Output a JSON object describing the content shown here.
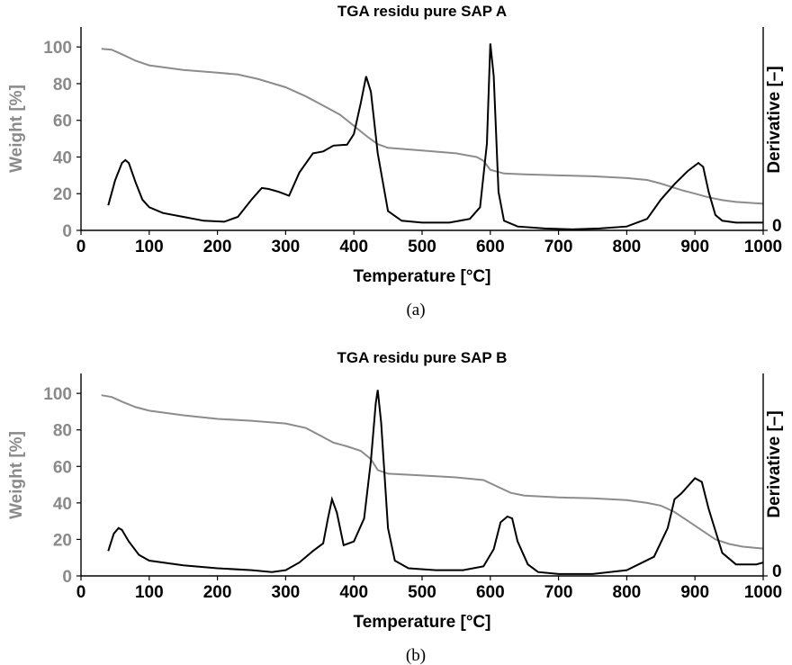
{
  "chart_data": [
    {
      "type": "line",
      "title": "TGA residu pure SAP A",
      "xlabel": "Temperature [°C]",
      "ylabel": "Weight [%]",
      "y2label": "Derivative [–]",
      "xlim": [
        0,
        1000
      ],
      "ylim": [
        0,
        105
      ],
      "y2lim": [
        0,
        100
      ],
      "x_ticks": [
        "0",
        "100",
        "200",
        "300",
        "400",
        "500",
        "600",
        "700",
        "800",
        "900",
        "1000"
      ],
      "y_ticks": [
        "0",
        "20",
        "40",
        "60",
        "80",
        "100"
      ],
      "y2_ticks": [
        "0"
      ],
      "caption": "(a)",
      "series": [
        {
          "color": "#8c8c8c",
          "axis": "left",
          "x": [
            30,
            45,
            60,
            80,
            100,
            150,
            200,
            230,
            260,
            300,
            330,
            360,
            380,
            400,
            420,
            435,
            450,
            500,
            550,
            580,
            590,
            600,
            620,
            650,
            700,
            750,
            800,
            830,
            850,
            880,
            900,
            920,
            940,
            960,
            980,
            1000
          ],
          "y": [
            99,
            98.5,
            96,
            92.5,
            90,
            87.5,
            86,
            85,
            82.5,
            78,
            73,
            67,
            63,
            57,
            51,
            47,
            45,
            43.5,
            42,
            40,
            38,
            33,
            31,
            30.5,
            30,
            29.5,
            28.5,
            27.5,
            25.5,
            22,
            20,
            18,
            16.5,
            15.5,
            15,
            14.5
          ]
        },
        {
          "color": "#000000",
          "axis": "right",
          "x": [
            40,
            50,
            60,
            65,
            70,
            80,
            90,
            100,
            120,
            150,
            180,
            210,
            230,
            250,
            265,
            275,
            290,
            305,
            320,
            340,
            355,
            370,
            390,
            400,
            410,
            418,
            425,
            435,
            450,
            470,
            500,
            540,
            570,
            585,
            595,
            600,
            605,
            612,
            620,
            640,
            680,
            720,
            760,
            800,
            830,
            850,
            870,
            890,
            905,
            912,
            920,
            930,
            940,
            960,
            1000
          ],
          "y": [
            13,
            26,
            35,
            36.5,
            35,
            25,
            16,
            12,
            9,
            7,
            5,
            4.5,
            7,
            16,
            22,
            21.5,
            20,
            18,
            30,
            40,
            41,
            44,
            44.5,
            50,
            66,
            80,
            72,
            40,
            10,
            5,
            4,
            4,
            6,
            12,
            45,
            97,
            80,
            20,
            5,
            2,
            1,
            0.5,
            1,
            2,
            6,
            16,
            24,
            31,
            35,
            33,
            20,
            8,
            5,
            4,
            4
          ]
        }
      ]
    },
    {
      "type": "line",
      "title": "TGA residu pure SAP B",
      "xlabel": "Temperature [°C]",
      "ylabel": "Weight [%]",
      "y2label": "Derivative [–]",
      "xlim": [
        0,
        1000
      ],
      "ylim": [
        0,
        105
      ],
      "y2lim": [
        0,
        100
      ],
      "x_ticks": [
        "0",
        "100",
        "200",
        "300",
        "400",
        "500",
        "600",
        "700",
        "800",
        "900",
        "1000"
      ],
      "y_ticks": [
        "0",
        "20",
        "40",
        "60",
        "80",
        "100"
      ],
      "y2_ticks": [
        "0"
      ],
      "caption": "(b)",
      "series": [
        {
          "color": "#8c8c8c",
          "axis": "left",
          "x": [
            30,
            45,
            60,
            80,
            100,
            150,
            200,
            250,
            300,
            330,
            350,
            370,
            390,
            410,
            425,
            435,
            450,
            500,
            550,
            590,
            610,
            630,
            650,
            700,
            750,
            800,
            830,
            850,
            870,
            890,
            910,
            930,
            950,
            970,
            1000
          ],
          "y": [
            99,
            98,
            95.5,
            92.5,
            90.5,
            88,
            86,
            85,
            83.5,
            81,
            77,
            73,
            71,
            68.5,
            64,
            58,
            56,
            55,
            54,
            52.5,
            49,
            45.5,
            44,
            43,
            42.5,
            41.5,
            40,
            38.5,
            35,
            30,
            25,
            20,
            17.5,
            16,
            15
          ]
        },
        {
          "color": "#000000",
          "axis": "right",
          "x": [
            40,
            48,
            55,
            60,
            70,
            85,
            100,
            150,
            200,
            250,
            280,
            300,
            320,
            340,
            355,
            362,
            368,
            375,
            385,
            400,
            415,
            425,
            432,
            435,
            440,
            450,
            460,
            480,
            520,
            560,
            590,
            605,
            615,
            625,
            632,
            640,
            655,
            670,
            700,
            750,
            800,
            840,
            860,
            870,
            880,
            890,
            900,
            910,
            920,
            940,
            960,
            990,
            1000
          ],
          "y": [
            13,
            22,
            25,
            24,
            18,
            11,
            8,
            5.5,
            4,
            3,
            2,
            3,
            7,
            13,
            17,
            30,
            40,
            33,
            16,
            18,
            30,
            60,
            90,
            97,
            80,
            25,
            8,
            4,
            3,
            3,
            5,
            14,
            28,
            31,
            30,
            18,
            6,
            2,
            1,
            1,
            3,
            10,
            25,
            40,
            43,
            47,
            51,
            49,
            35,
            12,
            6,
            6,
            7
          ]
        }
      ]
    }
  ]
}
